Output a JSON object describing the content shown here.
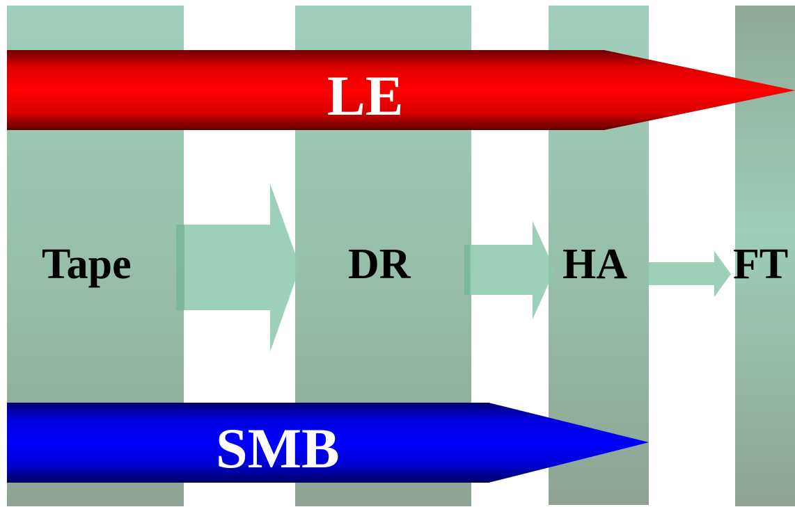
{
  "stages": [
    {
      "id": "tape",
      "label": "Tape"
    },
    {
      "id": "dr",
      "label": "DR"
    },
    {
      "id": "ha",
      "label": "HA"
    },
    {
      "id": "ft",
      "label": "FT"
    }
  ],
  "bands": [
    {
      "id": "le",
      "label": "LE",
      "color": "#ff0000"
    },
    {
      "id": "smb",
      "label": "SMB",
      "color": "#0000ff"
    }
  ],
  "colors": {
    "column_top": "#a0cfbb",
    "column_bottom": "#8fa394",
    "transition_arrow": "#8cc8ac"
  }
}
